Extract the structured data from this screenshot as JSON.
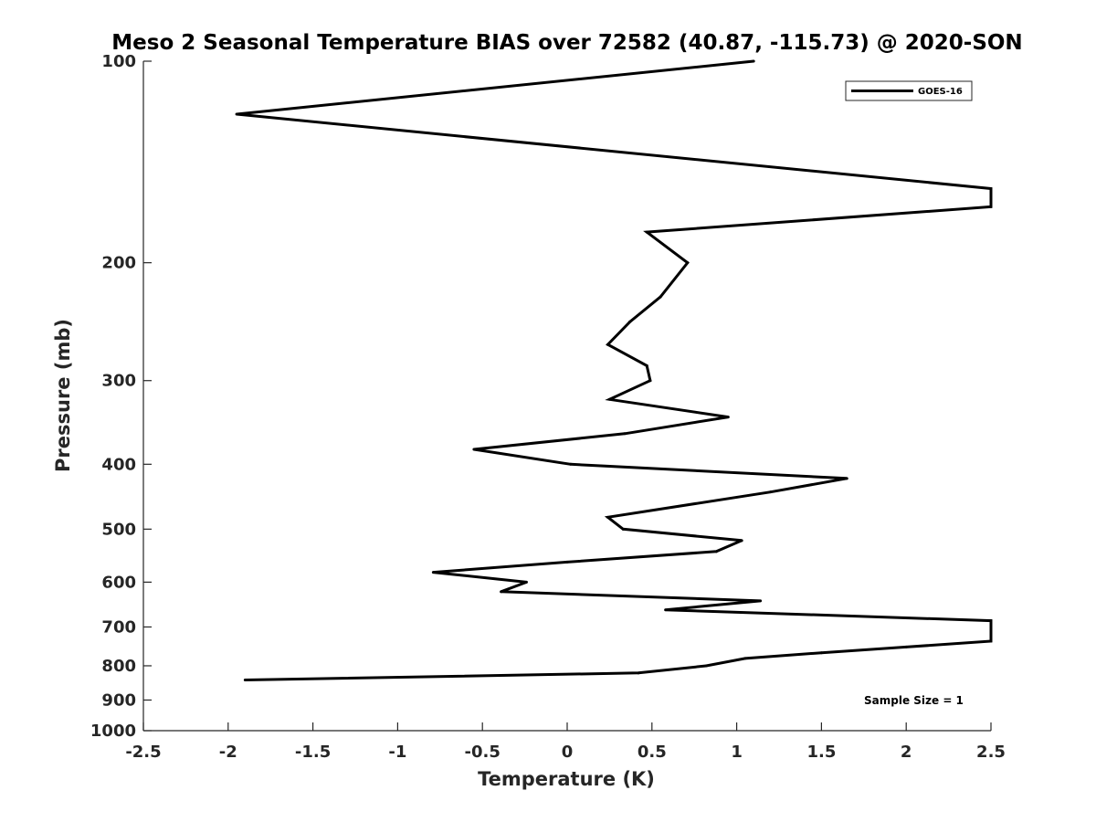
{
  "chart_data": {
    "type": "line",
    "title": "Meso 2 Seasonal Temperature BIAS over 72582 (40.87, -115.73) @ 2020-SON",
    "xlabel": "Temperature (K)",
    "ylabel": "Pressure (mb)",
    "xlim": [
      -2.5,
      2.5
    ],
    "ylim": [
      100,
      1000
    ],
    "y_scale": "log",
    "y_reversed": true,
    "grid": false,
    "x_ticks": [
      -2.5,
      -2,
      -1.5,
      -1,
      -0.5,
      0,
      0.5,
      1,
      1.5,
      2,
      2.5
    ],
    "x_tick_labels": [
      "-2.5",
      "-2",
      "-1.5",
      "-1",
      "-0.5",
      "0",
      "0.5",
      "1",
      "1.5",
      "2",
      "2.5"
    ],
    "y_ticks": [
      100,
      200,
      300,
      400,
      500,
      600,
      700,
      800,
      900,
      1000
    ],
    "y_tick_labels": [
      "100",
      "200",
      "300",
      "400",
      "500",
      "600",
      "700",
      "800",
      "900",
      "1000"
    ],
    "legend": {
      "position": "top-right",
      "entries": [
        "GOES-16"
      ]
    },
    "annotation": "Sample Size = 1",
    "series": [
      {
        "name": "GOES-16",
        "color": "#000000",
        "points": [
          {
            "x": 1.1,
            "y": 100
          },
          {
            "x": -1.95,
            "y": 120
          },
          {
            "x": 2.5,
            "y": 155
          },
          {
            "x": 2.5,
            "y": 165
          },
          {
            "x": 0.47,
            "y": 180
          },
          {
            "x": 0.71,
            "y": 200
          },
          {
            "x": 0.55,
            "y": 225
          },
          {
            "x": 0.37,
            "y": 245
          },
          {
            "x": 0.24,
            "y": 265
          },
          {
            "x": 0.47,
            "y": 285
          },
          {
            "x": 0.49,
            "y": 300
          },
          {
            "x": 0.25,
            "y": 320
          },
          {
            "x": 0.95,
            "y": 340
          },
          {
            "x": 0.34,
            "y": 360
          },
          {
            "x": -0.55,
            "y": 380
          },
          {
            "x": 0.02,
            "y": 400
          },
          {
            "x": 1.65,
            "y": 420
          },
          {
            "x": 1.2,
            "y": 440
          },
          {
            "x": 0.24,
            "y": 480
          },
          {
            "x": 0.33,
            "y": 500
          },
          {
            "x": 1.03,
            "y": 520
          },
          {
            "x": 0.88,
            "y": 540
          },
          {
            "x": 0.0,
            "y": 560
          },
          {
            "x": -0.79,
            "y": 580
          },
          {
            "x": -0.24,
            "y": 600
          },
          {
            "x": -0.39,
            "y": 620
          },
          {
            "x": 1.14,
            "y": 640
          },
          {
            "x": 0.58,
            "y": 660
          },
          {
            "x": 2.5,
            "y": 685
          },
          {
            "x": 2.5,
            "y": 735
          },
          {
            "x": 2.0,
            "y": 750
          },
          {
            "x": 1.5,
            "y": 765
          },
          {
            "x": 1.05,
            "y": 780
          },
          {
            "x": 0.82,
            "y": 800
          },
          {
            "x": 0.42,
            "y": 820
          },
          {
            "x": -1.9,
            "y": 840
          }
        ]
      }
    ]
  }
}
